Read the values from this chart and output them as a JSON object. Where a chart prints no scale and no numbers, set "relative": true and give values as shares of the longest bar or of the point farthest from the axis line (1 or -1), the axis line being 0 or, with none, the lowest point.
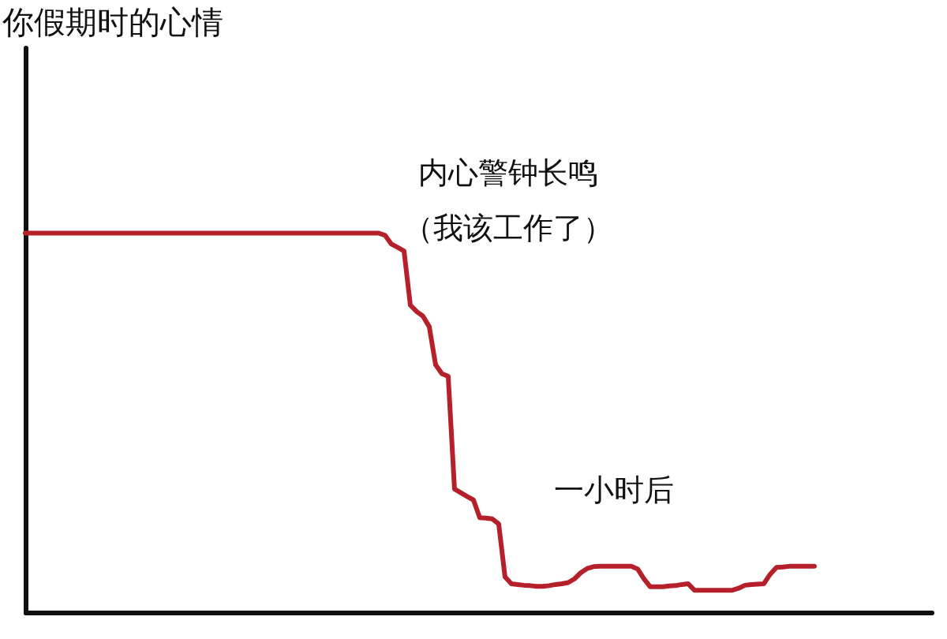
{
  "chart_data": {
    "type": "line",
    "title": "你假期时的心情",
    "annotations": [
      "内心警钟长鸣",
      "（我该工作了）",
      "一小时后"
    ],
    "relative": true,
    "categories": [
      null,
      null,
      null,
      null,
      null,
      null,
      null,
      null,
      null,
      null,
      null,
      null,
      null,
      null,
      null,
      null,
      null,
      null,
      null,
      null,
      null,
      null,
      null,
      null,
      null,
      null,
      null,
      null,
      null,
      null,
      null,
      null,
      null,
      null,
      null,
      null,
      null,
      null,
      null,
      null,
      null,
      null,
      null,
      null,
      null,
      null,
      null,
      null,
      null,
      null,
      null,
      null,
      null,
      null,
      null,
      null,
      null,
      null,
      null,
      null,
      null,
      null,
      null,
      null,
      null,
      null,
      null,
      null,
      null,
      null,
      null,
      null,
      null,
      null,
      null,
      null,
      null,
      null,
      null,
      null,
      null,
      null,
      null,
      null,
      null,
      null,
      null,
      null,
      null,
      null,
      null,
      null,
      null,
      null,
      null,
      null,
      null,
      null,
      null,
      null,
      null,
      null,
      null,
      null,
      null,
      null,
      null,
      null,
      null,
      null,
      null,
      null,
      null,
      null,
      null,
      null,
      null,
      null,
      null,
      null,
      null,
      null,
      null,
      null,
      null,
      null
    ],
    "series": [
      {
        "color": "#b5202a",
        "values": [
          1,
          1,
          1,
          1,
          1,
          1,
          1,
          1,
          1,
          1,
          1,
          1,
          1,
          1,
          1,
          1,
          1,
          1,
          1,
          1,
          1,
          1,
          1,
          1,
          1,
          1,
          1,
          1,
          1,
          1,
          1,
          1,
          1,
          1,
          1,
          1,
          1,
          1,
          1,
          1,
          1,
          1,
          1,
          1,
          1,
          1,
          1,
          1,
          1,
          1,
          1,
          1,
          1,
          1,
          1,
          1,
          1,
          0.994,
          0.971,
          0.962,
          0.953,
          0.81,
          0.793,
          0.781,
          0.753,
          0.653,
          0.629,
          0.622,
          0.325,
          0.315,
          0.305,
          0.296,
          0.249,
          0.248,
          0.246,
          0.233,
          0.093,
          0.075,
          0.073,
          0.071,
          0.07,
          0.068,
          0.068,
          0.07,
          0.073,
          0.075,
          0.078,
          0.088,
          0.104,
          0.115,
          0.12,
          0.121,
          0.121,
          0.121,
          0.121,
          0.121,
          0.121,
          0.114,
          0.088,
          0.067,
          0.067,
          0.067,
          0.069,
          0.07,
          0.073,
          0.075,
          0.058,
          0.058,
          0.058,
          0.058,
          0.058,
          0.058,
          0.058,
          0.063,
          0.071,
          0.073,
          0.074,
          0.075,
          0.1,
          0.118,
          0.119,
          0.121,
          0.121,
          0.121,
          0.121,
          0.121
        ]
      }
    ]
  }
}
